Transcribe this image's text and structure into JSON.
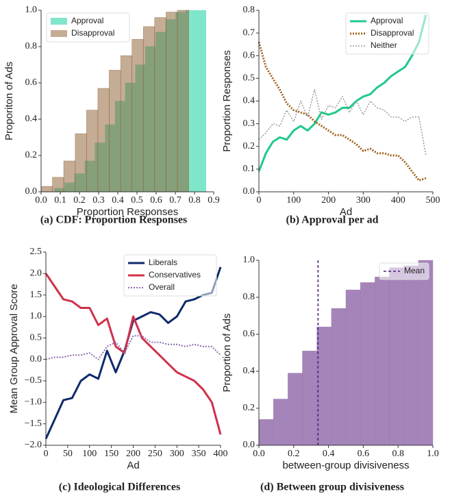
{
  "chart_data": [
    {
      "type": "histogram",
      "caption": "(a) CDF: Proportion Responses",
      "xlabel": "Proportion Responses",
      "ylabel": "Proporiton of Ads",
      "xlim": [
        0,
        0.9
      ],
      "xticks": [
        {
          "value": 0,
          "label": "0.0"
        },
        0.1,
        0.2,
        0.3,
        0.4,
        0.5,
        0.6,
        0.7,
        0.8,
        0.9
      ],
      "ylim": [
        0,
        1
      ],
      "yticks": [
        {
          "value": 0,
          "label": "0.0"
        },
        0.2,
        0.4,
        0.6,
        0.8,
        {
          "value": 1,
          "label": "1.0"
        }
      ],
      "legend": "upper left",
      "series": [
        {
          "name": "Approval",
          "color": "#72e3c5",
          "alpha": 0.9,
          "bins": [
            0.07,
            0.123,
            0.175,
            0.228,
            0.281,
            0.334,
            0.386,
            0.439,
            0.492,
            0.544,
            0.597,
            0.65,
            0.702,
            0.755,
            0.808,
            0.86
          ],
          "values": [
            0.02,
            0.05,
            0.1,
            0.17,
            0.27,
            0.37,
            0.5,
            0.6,
            0.7,
            0.8,
            0.88,
            0.95,
            0.99,
            1,
            1
          ]
        },
        {
          "name": "Disapproval",
          "color": "#8b5a2b",
          "alpha": 0.5,
          "bins": [
            0,
            0.059,
            0.118,
            0.178,
            0.237,
            0.296,
            0.355,
            0.415,
            0.474,
            0.533,
            0.592,
            0.652,
            0.711,
            0.77
          ],
          "values": [
            0.03,
            0.08,
            0.17,
            0.32,
            0.45,
            0.57,
            0.67,
            0.75,
            0.84,
            0.91,
            0.96,
            0.99,
            1
          ]
        }
      ]
    },
    {
      "type": "line",
      "caption": "(b) Approval per ad",
      "xlabel": "Ad",
      "ylabel": "Proportion Responses",
      "xlim": [
        0,
        500
      ],
      "xticks": [
        0,
        100,
        200,
        300,
        400,
        500
      ],
      "ylim": [
        0,
        0.8
      ],
      "yticks": [
        {
          "value": 0,
          "label": "0.0"
        },
        0.1,
        0.2,
        0.3,
        0.4,
        0.5,
        0.6,
        0.7,
        0.8
      ],
      "legend": "upper right",
      "x": [
        0,
        20,
        40,
        60,
        80,
        100,
        120,
        140,
        160,
        180,
        200,
        220,
        240,
        260,
        280,
        300,
        320,
        340,
        360,
        380,
        400,
        420,
        440,
        460,
        480
      ],
      "series": [
        {
          "name": "Approval",
          "color": "#1fc98a",
          "linestyle": "solid",
          "width": 3,
          "values": [
            0.09,
            0.17,
            0.22,
            0.24,
            0.23,
            0.27,
            0.29,
            0.27,
            0.3,
            0.35,
            0.34,
            0.35,
            0.37,
            0.37,
            0.4,
            0.42,
            0.43,
            0.46,
            0.48,
            0.51,
            0.53,
            0.55,
            0.6,
            0.66,
            0.78
          ]
        },
        {
          "name": "Disapproval",
          "color": "#a0601a",
          "linestyle": "dotted",
          "width": 3,
          "values": [
            0.66,
            0.55,
            0.5,
            0.45,
            0.39,
            0.36,
            0.35,
            0.34,
            0.31,
            0.29,
            0.27,
            0.25,
            0.25,
            0.23,
            0.21,
            0.18,
            0.19,
            0.17,
            0.17,
            0.16,
            0.16,
            0.13,
            0.09,
            0.05,
            0.06
          ]
        },
        {
          "name": "Neither",
          "color": "#999999",
          "linestyle": "dotted",
          "width": 1.5,
          "values": [
            0.23,
            0.26,
            0.3,
            0.29,
            0.36,
            0.31,
            0.4,
            0.33,
            0.45,
            0.32,
            0.38,
            0.37,
            0.42,
            0.35,
            0.4,
            0.34,
            0.4,
            0.37,
            0.36,
            0.33,
            0.33,
            0.31,
            0.33,
            0.33,
            0.16
          ]
        }
      ]
    },
    {
      "type": "line",
      "caption": "(c) Ideological Differences",
      "xlabel": "Ad",
      "ylabel": "Mean Group Approval Score",
      "xlim": [
        0,
        400
      ],
      "xticks": [
        0,
        50,
        100,
        150,
        200,
        250,
        300,
        350,
        400
      ],
      "ylim": [
        -2,
        2.5
      ],
      "yticks": [
        {
          "value": -2,
          "label": "−2.0"
        },
        {
          "value": -1.5,
          "label": "−1.5"
        },
        {
          "value": -1,
          "label": "−1.0"
        },
        {
          "value": -0.5,
          "label": "−0.5"
        },
        {
          "value": 0,
          "label": "0.0"
        },
        0.5,
        {
          "value": 1,
          "label": "1.0"
        },
        1.5,
        {
          "value": 2,
          "label": "2.0"
        },
        2.5
      ],
      "legend": "upper right",
      "x": [
        0,
        20,
        40,
        60,
        80,
        100,
        120,
        140,
        160,
        180,
        200,
        220,
        240,
        260,
        280,
        300,
        320,
        340,
        360,
        380,
        400
      ],
      "series": [
        {
          "name": "Liberals",
          "color": "#0d2a6b",
          "linestyle": "solid",
          "width": 3,
          "values": [
            -1.85,
            -1.4,
            -0.95,
            -0.9,
            -0.5,
            -0.35,
            -0.45,
            0.2,
            -0.3,
            0.2,
            0.9,
            1,
            1.1,
            1.05,
            0.85,
            1,
            1.35,
            1.4,
            1.5,
            1.55,
            2.15
          ]
        },
        {
          "name": "Conservatives",
          "color": "#d0304a",
          "linestyle": "solid",
          "width": 3,
          "values": [
            2,
            1.7,
            1.4,
            1.35,
            1.2,
            1.2,
            0.8,
            0.95,
            0.3,
            0.15,
            1,
            0.5,
            0.3,
            0.1,
            -0.1,
            -0.3,
            -0.4,
            -0.5,
            -0.7,
            -1,
            -1.75
          ]
        },
        {
          "name": "Overall",
          "color": "#8a6aaa",
          "linestyle": "dotted",
          "width": 2,
          "values": [
            0,
            0.05,
            0.05,
            0.1,
            0.1,
            0.15,
            0,
            0.3,
            0.4,
            0.15,
            0.55,
            0.55,
            0.4,
            0.4,
            0.35,
            0.35,
            0.3,
            0.35,
            0.3,
            0.3,
            0.1
          ]
        }
      ]
    },
    {
      "type": "histogram",
      "caption": "(d) Between group divisiveness",
      "xlabel": "between-group divisiveness",
      "ylabel": "Proportion of Ads",
      "xlim": [
        0,
        1
      ],
      "xticks": [
        {
          "value": 0,
          "label": "0.0"
        },
        0.2,
        0.4,
        0.6,
        0.8,
        {
          "value": 1,
          "label": "1.0"
        }
      ],
      "ylim": [
        0,
        1
      ],
      "yticks": [
        {
          "value": 0,
          "label": "0.0"
        },
        0.2,
        0.4,
        0.6,
        0.8,
        {
          "value": 1,
          "label": "1.0"
        }
      ],
      "legend": "upper right",
      "series": [
        {
          "color": "#9b77b3",
          "alpha": 0.9,
          "bins": [
            0,
            0.0833,
            0.1667,
            0.25,
            0.3333,
            0.4167,
            0.5,
            0.5833,
            0.6667,
            0.75,
            0.8333,
            0.9167,
            1
          ],
          "values": [
            0.14,
            0.25,
            0.39,
            0.51,
            0.64,
            0.74,
            0.84,
            0.88,
            0.91,
            0.96,
            0.97,
            1
          ]
        }
      ],
      "vline": {
        "name": "Mean",
        "value": 0.34,
        "color": "#4b1a7a"
      }
    }
  ]
}
